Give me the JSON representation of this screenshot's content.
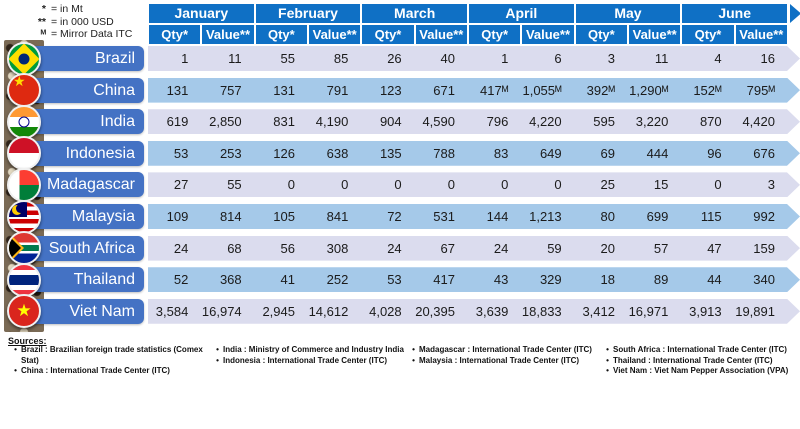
{
  "legend": {
    "items": [
      {
        "symbol": "*",
        "text": "= in Mt"
      },
      {
        "symbol": "**",
        "text": "= in 000 USD"
      },
      {
        "symbol": "ᴹ",
        "text": "= Mirror Data ITC"
      }
    ]
  },
  "chart_data": {
    "type": "table",
    "months": [
      "January",
      "February",
      "March",
      "April",
      "May",
      "June"
    ],
    "measures": [
      "Qty*",
      "Value**"
    ],
    "unit_notes": [
      "* = in Mt",
      "** = in 000 USD",
      "M = Mirror Data ITC"
    ],
    "rows": [
      {
        "country": "Brazil",
        "flag": "brazil",
        "cells": [
          "1",
          "11",
          "55",
          "85",
          "26",
          "40",
          "1",
          "6",
          "3",
          "11",
          "4",
          "16"
        ],
        "values": [
          1,
          11,
          55,
          85,
          26,
          40,
          1,
          6,
          3,
          11,
          4,
          16
        ]
      },
      {
        "country": "China",
        "flag": "china",
        "cells": [
          "131",
          "757",
          "131",
          "791",
          "123",
          "671",
          "417ᴹ",
          "1,055ᴹ",
          "392ᴹ",
          "1,290ᴹ",
          "152ᴹ",
          "795ᴹ"
        ],
        "values": [
          131,
          757,
          131,
          791,
          123,
          671,
          417,
          1055,
          392,
          1290,
          152,
          795
        ]
      },
      {
        "country": "India",
        "flag": "india",
        "cells": [
          "619",
          "2,850",
          "831",
          "4,190",
          "904",
          "4,590",
          "796",
          "4,220",
          "595",
          "3,220",
          "870",
          "4,420"
        ],
        "values": [
          619,
          2850,
          831,
          4190,
          904,
          4590,
          796,
          4220,
          595,
          3220,
          870,
          4420
        ]
      },
      {
        "country": "Indonesia",
        "flag": "indonesia",
        "cells": [
          "53",
          "253",
          "126",
          "638",
          "135",
          "788",
          "83",
          "649",
          "69",
          "444",
          "96",
          "676"
        ],
        "values": [
          53,
          253,
          126,
          638,
          135,
          788,
          83,
          649,
          69,
          444,
          96,
          676
        ]
      },
      {
        "country": "Madagascar",
        "flag": "madagascar",
        "cells": [
          "27",
          "55",
          "0",
          "0",
          "0",
          "0",
          "0",
          "0",
          "25",
          "15",
          "0",
          "3"
        ],
        "values": [
          27,
          55,
          0,
          0,
          0,
          0,
          0,
          0,
          25,
          15,
          0,
          3
        ]
      },
      {
        "country": "Malaysia",
        "flag": "malaysia",
        "cells": [
          "109",
          "814",
          "105",
          "841",
          "72",
          "531",
          "144",
          "1,213",
          "80",
          "699",
          "115",
          "992"
        ],
        "values": [
          109,
          814,
          105,
          841,
          72,
          531,
          144,
          1213,
          80,
          699,
          115,
          992
        ]
      },
      {
        "country": "South Africa",
        "flag": "southafrica",
        "cells": [
          "24",
          "68",
          "56",
          "308",
          "24",
          "67",
          "24",
          "59",
          "20",
          "57",
          "47",
          "159"
        ],
        "values": [
          24,
          68,
          56,
          308,
          24,
          67,
          24,
          59,
          20,
          57,
          47,
          159
        ]
      },
      {
        "country": "Thailand",
        "flag": "thailand",
        "cells": [
          "52",
          "368",
          "41",
          "252",
          "53",
          "417",
          "43",
          "329",
          "18",
          "89",
          "44",
          "340"
        ],
        "values": [
          52,
          368,
          41,
          252,
          53,
          417,
          43,
          329,
          18,
          89,
          44,
          340
        ]
      },
      {
        "country": "Viet Nam",
        "flag": "vietnam",
        "cells": [
          "3,584",
          "16,974",
          "2,945",
          "14,612",
          "4,028",
          "20,395",
          "3,639",
          "18,833",
          "3,412",
          "16,971",
          "3,913",
          "19,891"
        ],
        "values": [
          3584,
          16974,
          2945,
          14612,
          4028,
          20395,
          3639,
          18833,
          3412,
          16971,
          3913,
          19891
        ]
      }
    ]
  },
  "sources": {
    "title": "Sources:",
    "columns": [
      [
        "Brazil : Brazilian foreign trade statistics (Comex Stat)",
        "China : International Trade Center (ITC)"
      ],
      [
        "India : Ministry of Commerce and Industry India",
        "Indonesia : International Trade Center (ITC)"
      ],
      [
        "Madagascar : International Trade Center (ITC)",
        "Malaysia : International Trade Center (ITC)"
      ],
      [
        "South Africa : International Trade Center (ITC)",
        "Thailand : International Trade Center (ITC)",
        "Viet Nam : Viet Nam Pepper Association (VPA)"
      ]
    ]
  },
  "colors": {
    "header_blue": "#0f70c5",
    "country_label_blue": "#4472c4",
    "row_light": "#dbdcee",
    "row_blue": "#a5c9e9"
  }
}
